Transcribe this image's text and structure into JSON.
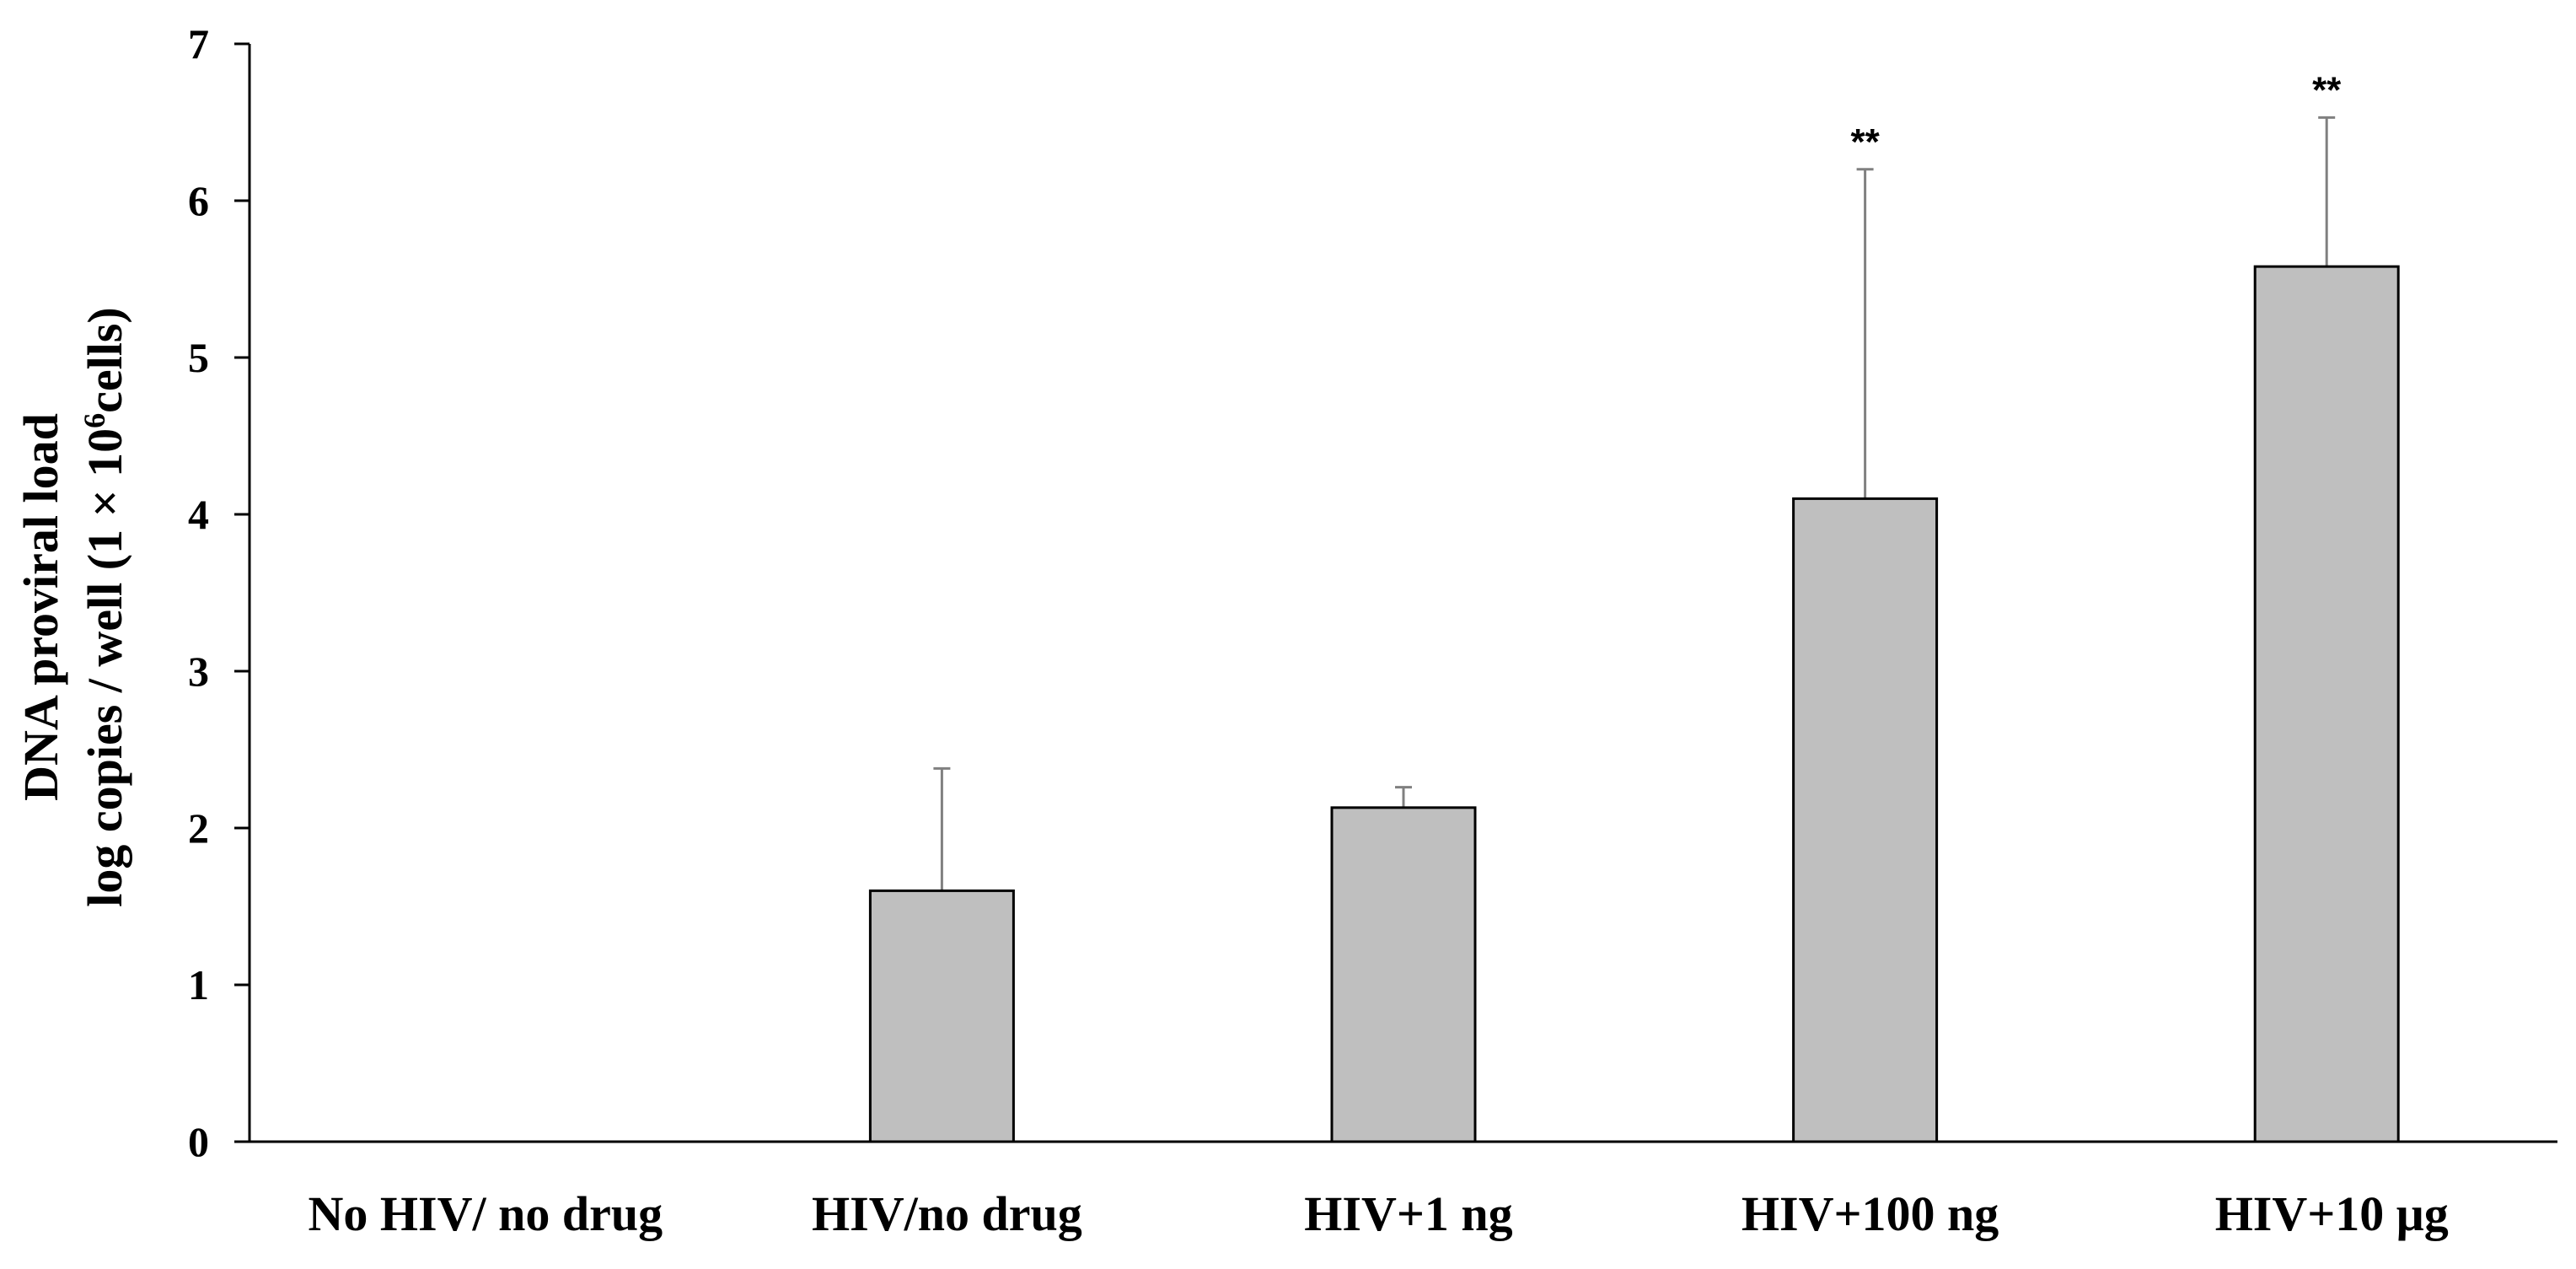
{
  "chart_data": {
    "type": "bar",
    "title": "",
    "xlabel": "",
    "ylabel_line1": "DNA proviral load",
    "ylabel_line2_prefix": "log copies / well (1 × 10",
    "ylabel_line2_sup": "6",
    "ylabel_line2_suffix": "cells)",
    "ylim": [
      0,
      7
    ],
    "yticks": [
      "0",
      "1",
      "2",
      "3",
      "4",
      "5",
      "6",
      "7"
    ],
    "grid": false,
    "categories": [
      "No HIV/ no drug",
      "HIV/no drug",
      "HIV+1 ng",
      "HIV+100 ng",
      "HIV+10 μg"
    ],
    "values": [
      0,
      1.6,
      2.13,
      4.1,
      5.58
    ],
    "error_upper": [
      0,
      0.78,
      0.13,
      2.1,
      0.95
    ],
    "annotations": [
      "",
      "",
      "",
      "**",
      "**"
    ],
    "bar_color": "#bfbfbf",
    "bar_edge_color": "#000000",
    "error_color": "#808080",
    "axis_color": "#000000"
  }
}
